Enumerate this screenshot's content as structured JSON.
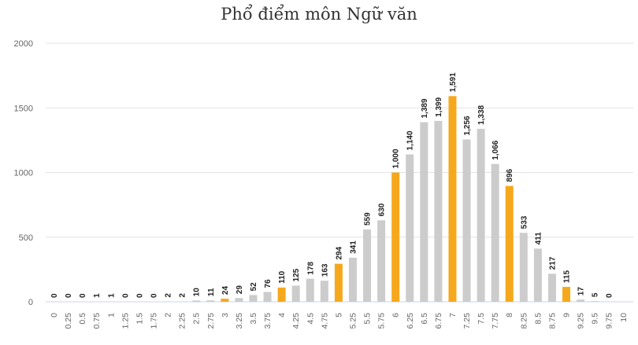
{
  "title": "Phổ điểm môn Ngữ văn",
  "chart_data": {
    "type": "bar",
    "title": "Phổ điểm môn Ngữ văn",
    "xlabel": "",
    "ylabel": "",
    "ylim": [
      0,
      2000
    ],
    "yticks": [
      "0",
      "500",
      "1000",
      "1500",
      "2000"
    ],
    "grid": true,
    "categories": [
      "0",
      "0.25",
      "0.5",
      "0.75",
      "1",
      "1.25",
      "1.5",
      "1.75",
      "2",
      "2.25",
      "2.5",
      "2.75",
      "3",
      "3.25",
      "3.5",
      "3.75",
      "4",
      "4.25",
      "4.5",
      "4.75",
      "5",
      "5.25",
      "5.5",
      "5.75",
      "6",
      "6.25",
      "6.5",
      "6.75",
      "7",
      "7.25",
      "7.5",
      "7.75",
      "8",
      "8.25",
      "8.5",
      "8.75",
      "9",
      "9.25",
      "9.5",
      "9.75",
      "10"
    ],
    "values": [
      0,
      0,
      0,
      1,
      1,
      0,
      0,
      0,
      2,
      2,
      10,
      11,
      24,
      29,
      52,
      76,
      110,
      125,
      178,
      163,
      294,
      341,
      559,
      630,
      1000,
      1140,
      1389,
      1399,
      1591,
      1256,
      1338,
      1066,
      896,
      533,
      411,
      217,
      115,
      17,
      5,
      0,
      null
    ],
    "value_labels": [
      "0",
      "0",
      "0",
      "1",
      "1",
      "0",
      "0",
      "0",
      "2",
      "2",
      "10",
      "11",
      "24",
      "29",
      "52",
      "76",
      "110",
      "125",
      "178",
      "163",
      "294",
      "341",
      "559",
      "630",
      "1,000",
      "1,140",
      "1,389",
      "1,399",
      "1,591",
      "1,256",
      "1,338",
      "1,066",
      "896",
      "533",
      "411",
      "217",
      "115",
      "17",
      "5",
      "0",
      ""
    ],
    "highlight_categories": [
      "3",
      "4",
      "5",
      "6",
      "7",
      "8",
      "9"
    ],
    "colors": {
      "normal": "#cccccc",
      "highlight": "#f6a81c",
      "grid": "#e3e3e3",
      "axis": "#ccd6eb"
    }
  }
}
